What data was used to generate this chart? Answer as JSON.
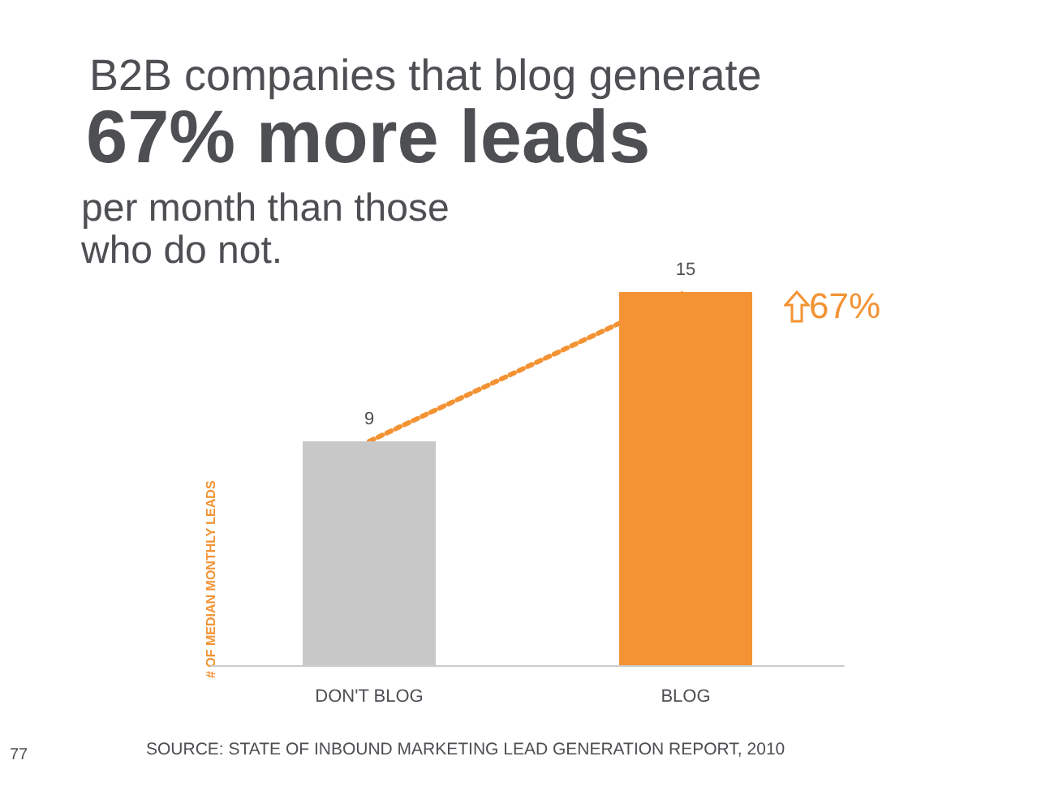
{
  "chart_data": {
    "type": "bar",
    "title": "B2B companies that blog generate",
    "subtitle": "67% more leads",
    "ylabel": "# OF MEDIAN MONTHLY LEADS",
    "categories": [
      "DON'T BLOG",
      "BLOG"
    ],
    "series": [
      {
        "colors": [
          "#c8c8c8",
          "#f39333"
        ],
        "values": [
          9,
          15
        ],
        "value_labels": [
          "9",
          "15"
        ]
      },
      {
        "type": "line",
        "color": "#f39333",
        "line_style": "dotted",
        "marker": "none",
        "values": [
          9,
          15
        ]
      }
    ],
    "grid": false,
    "annotations": [
      "per month than those who do not.",
      "67%",
      "SOURCE: STATE OF INBOUND MARKETING LEAD GENERATION REPORT, 2010",
      "77"
    ]
  }
}
